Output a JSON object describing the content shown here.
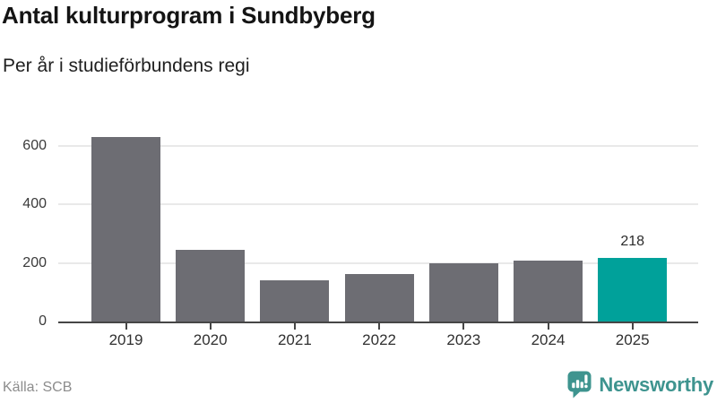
{
  "header": {
    "title": "Antal kulturprogram i Sundbyberg",
    "subtitle": "Per år i studieförbundens regi"
  },
  "chart_data": {
    "type": "bar",
    "title": "Antal kulturprogram i Sundbyberg",
    "subtitle": "Per år i studieförbundens regi",
    "categories": [
      "2019",
      "2020",
      "2021",
      "2022",
      "2023",
      "2024",
      "2025"
    ],
    "values": [
      630,
      244,
      141,
      162,
      198,
      207,
      218
    ],
    "xlabel": "",
    "ylabel": "",
    "ylim": [
      0,
      670
    ],
    "yticks": [
      0,
      200,
      400,
      600
    ],
    "gridlines": [
      200,
      400,
      600
    ],
    "grid": "horizontal-light",
    "legend": "none",
    "bar_color": "#6d6d73",
    "highlight_color": "#00a19a",
    "highlight_index": 6,
    "data_labels": [
      {
        "index": 6,
        "text": "218"
      }
    ],
    "axis_line_color": "#464646",
    "gridline_color": "#e9e9e9"
  },
  "footer": {
    "source": "Källa: SCB",
    "brand": "Newsworthy",
    "brand_color": "#3e948f",
    "logo_icon": "newsworthy-speech-bubble-bar-chart-icon"
  }
}
